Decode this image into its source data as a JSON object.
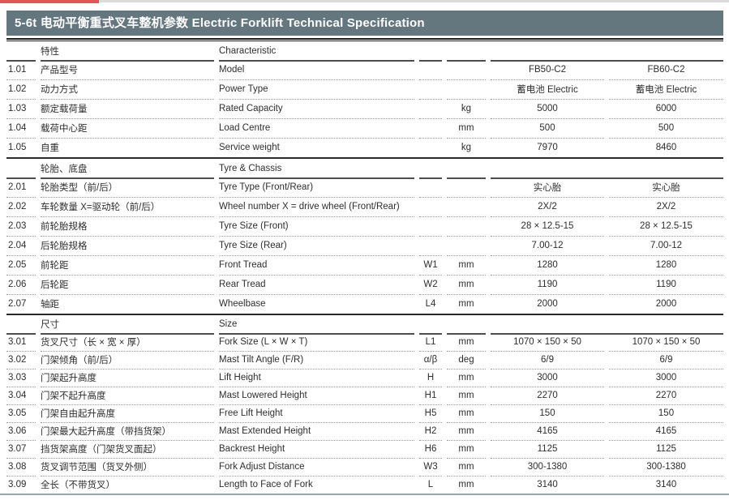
{
  "page": {
    "title": "5-6t 电动平衡重式叉车整机参数  Electric Forklift Technical Specification",
    "colors": {
      "title_bar_bg": "#64767e",
      "accent_red": "#e05555",
      "rule_dark": "#1c1c1c",
      "bottom_rule": "#9aa7ac"
    }
  },
  "table": {
    "sections": [
      {
        "name_cn": "特性",
        "name_en": "Characteristic",
        "rows": [
          {
            "no": "1.01",
            "cn": "产品型号",
            "en": "Model",
            "sym": "",
            "unit": "",
            "v1": "FB50-C2",
            "v2": "FB60-C2"
          },
          {
            "no": "1.02",
            "cn": "动力方式",
            "en": "Power Type",
            "sym": "",
            "unit": "",
            "v1": "蓄电池  Electric",
            "v2": "蓄电池  Electric"
          },
          {
            "no": "1.03",
            "cn": "额定载荷量",
            "en": "Rated Capacity",
            "sym": "",
            "unit": "kg",
            "v1": "5000",
            "v2": "6000"
          },
          {
            "no": "1.04",
            "cn": "载荷中心距",
            "en": "Load Centre",
            "sym": "",
            "unit": "mm",
            "v1": "500",
            "v2": "500"
          },
          {
            "no": "1.05",
            "cn": "自重",
            "en": "Service weight",
            "sym": "",
            "unit": "kg",
            "v1": "7970",
            "v2": "8460"
          }
        ]
      },
      {
        "name_cn": "轮胎、底盘",
        "name_en": "Tyre & Chassis",
        "rows": [
          {
            "no": "2.01",
            "cn": "轮胎类型（前/后）",
            "en": "Tyre Type (Front/Rear)",
            "sym": "",
            "unit": "",
            "v1": "实心胎",
            "v2": "实心胎"
          },
          {
            "no": "2.02",
            "cn": "车轮数量 X=驱动轮（前/后）",
            "en": "Wheel number X = drive wheel (Front/Rear)",
            "sym": "",
            "unit": "",
            "v1": "2X/2",
            "v2": "2X/2"
          },
          {
            "no": "2.03",
            "cn": "前轮胎规格",
            "en": "Tyre Size (Front)",
            "sym": "",
            "unit": "",
            "v1": "28 × 12.5-15",
            "v2": "28 × 12.5-15"
          },
          {
            "no": "2.04",
            "cn": "后轮胎规格",
            "en": "Tyre Size (Rear)",
            "sym": "",
            "unit": "",
            "v1": "7.00-12",
            "v2": "7.00-12"
          },
          {
            "no": "2.05",
            "cn": "前轮距",
            "en": "Front Tread",
            "sym": "W1",
            "unit": "mm",
            "v1": "1280",
            "v2": "1280"
          },
          {
            "no": "2.06",
            "cn": "后轮距",
            "en": "Rear Tread",
            "sym": "W2",
            "unit": "mm",
            "v1": "1190",
            "v2": "1190"
          },
          {
            "no": "2.07",
            "cn": "轴距",
            "en": "Wheelbase",
            "sym": "L4",
            "unit": "mm",
            "v1": "2000",
            "v2": "2000"
          }
        ]
      },
      {
        "name_cn": "尺寸",
        "name_en": "Size",
        "rows": [
          {
            "no": "3.01",
            "cn": "货叉尺寸（长 × 宽 × 厚）",
            "en": "Fork Size (L × W × T)",
            "sym": "L1",
            "unit": "mm",
            "v1": "1070 × 150 × 50",
            "v2": "1070 × 150 × 50"
          },
          {
            "no": "3.02",
            "cn": "门架倾角（前/后）",
            "en": "Mast Tilt Angle (F/R)",
            "sym": "α/β",
            "unit": "deg",
            "v1": "6/9",
            "v2": "6/9"
          },
          {
            "no": "3.03",
            "cn": "门架起升高度",
            "en": "Lift Height",
            "sym": "H",
            "unit": "mm",
            "v1": "3000",
            "v2": "3000"
          },
          {
            "no": "3.04",
            "cn": "门架不起升高度",
            "en": "Mast Lowered Height",
            "sym": "H1",
            "unit": "mm",
            "v1": "2270",
            "v2": "2270"
          },
          {
            "no": "3.05",
            "cn": "门架自由起升高度",
            "en": "Free Lift Height",
            "sym": "H5",
            "unit": "mm",
            "v1": "150",
            "v2": "150"
          },
          {
            "no": "3.06",
            "cn": "门架最大起升高度（带挡货架）",
            "en": "Mast Extended Height",
            "sym": "H2",
            "unit": "mm",
            "v1": "4165",
            "v2": "4165"
          },
          {
            "no": "3.07",
            "cn": "挡货架高度（门架货叉面起）",
            "en": "Backrest Height",
            "sym": "H6",
            "unit": "mm",
            "v1": "1125",
            "v2": "1125"
          },
          {
            "no": "3.08",
            "cn": "货叉调节范围（货叉外侧）",
            "en": "Fork Adjust Distance",
            "sym": "W3",
            "unit": "mm",
            "v1": "300-1380",
            "v2": "300-1380"
          },
          {
            "no": "3.09",
            "cn": "全长（不带货叉）",
            "en": "Length to Face of Fork",
            "sym": "L",
            "unit": "mm",
            "v1": "3140",
            "v2": "3140"
          }
        ]
      }
    ]
  }
}
